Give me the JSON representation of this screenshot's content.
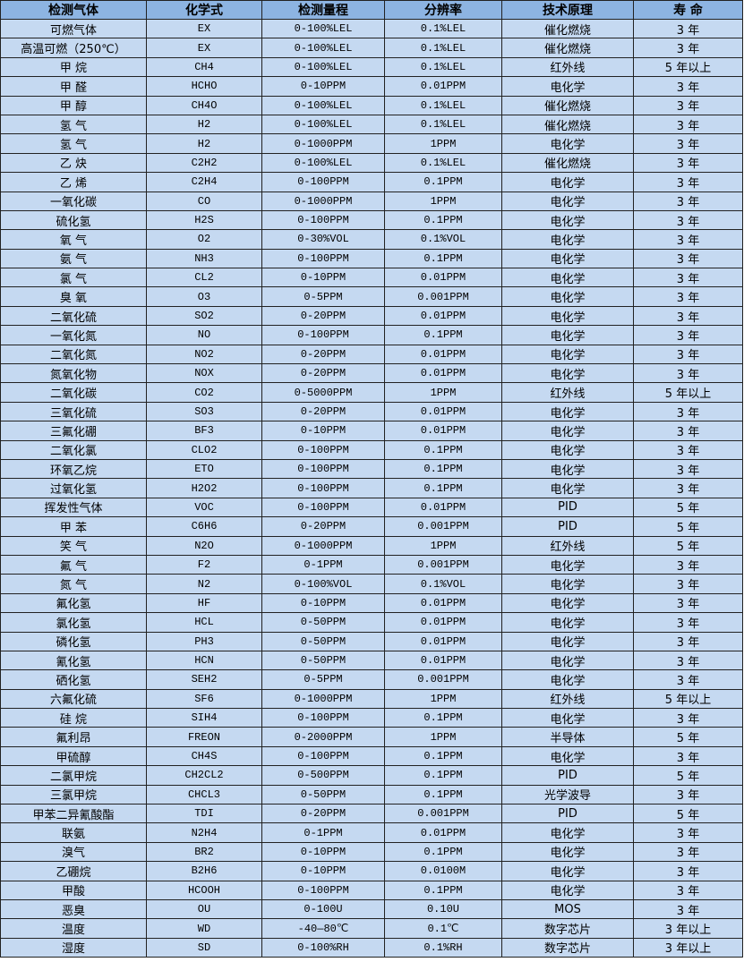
{
  "table": {
    "headers": [
      "检测气体",
      "化学式",
      "检测量程",
      "分辨率",
      "技术原理",
      "寿 命"
    ],
    "rows": [
      [
        "可燃气体",
        "EX",
        "0-100%LEL",
        "0.1%LEL",
        "催化燃烧",
        "3 年"
      ],
      [
        "高温可燃（250℃）",
        "EX",
        "0-100%LEL",
        "0.1%LEL",
        "催化燃烧",
        "3 年"
      ],
      [
        "甲 烷",
        "CH4",
        "0-100%LEL",
        "0.1%LEL",
        "红外线",
        "5 年以上"
      ],
      [
        "甲 醛",
        "HCHO",
        "0-10PPM",
        "0.01PPM",
        "电化学",
        "3 年"
      ],
      [
        "甲 醇",
        "CH4O",
        "0-100%LEL",
        "0.1%LEL",
        "催化燃烧",
        "3 年"
      ],
      [
        "氢 气",
        "H2",
        "0-100%LEL",
        "0.1%LEL",
        "催化燃烧",
        "3 年"
      ],
      [
        "氢 气",
        "H2",
        "0-1000PPM",
        "1PPM",
        "电化学",
        "3 年"
      ],
      [
        "乙 炔",
        "C2H2",
        "0-100%LEL",
        "0.1%LEL",
        "催化燃烧",
        "3 年"
      ],
      [
        "乙 烯",
        "C2H4",
        "0-100PPM",
        "0.1PPM",
        "电化学",
        "3 年"
      ],
      [
        "一氧化碳",
        "CO",
        "0-1000PPM",
        "1PPM",
        "电化学",
        "3 年"
      ],
      [
        "硫化氢",
        "H2S",
        "0-100PPM",
        "0.1PPM",
        "电化学",
        "3 年"
      ],
      [
        "氧 气",
        "O2",
        "0-30%VOL",
        "0.1%VOL",
        "电化学",
        "3 年"
      ],
      [
        "氨 气",
        "NH3",
        "0-100PPM",
        "0.1PPM",
        "电化学",
        "3 年"
      ],
      [
        "氯 气",
        "CL2",
        "0-10PPM",
        "0.01PPM",
        "电化学",
        "3 年"
      ],
      [
        "臭 氧",
        "O3",
        "0-5PPM",
        "0.001PPM",
        "电化学",
        "3 年"
      ],
      [
        "二氧化硫",
        "SO2",
        "0-20PPM",
        "0.01PPM",
        "电化学",
        "3 年"
      ],
      [
        "一氧化氮",
        "NO",
        "0-100PPM",
        "0.1PPM",
        "电化学",
        "3 年"
      ],
      [
        "二氧化氮",
        "NO2",
        "0-20PPM",
        "0.01PPM",
        "电化学",
        "3 年"
      ],
      [
        "氮氧化物",
        "NOX",
        "0-20PPM",
        "0.01PPM",
        "电化学",
        "3 年"
      ],
      [
        "二氧化碳",
        "CO2",
        "0-5000PPM",
        "1PPM",
        "红外线",
        "5 年以上"
      ],
      [
        "三氧化硫",
        "SO3",
        "0-20PPM",
        "0.01PPM",
        "电化学",
        "3 年"
      ],
      [
        "三氟化硼",
        "BF3",
        "0-10PPM",
        "0.01PPM",
        "电化学",
        "3 年"
      ],
      [
        "二氧化氯",
        "CLO2",
        "0-100PPM",
        "0.1PPM",
        "电化学",
        "3 年"
      ],
      [
        "环氧乙烷",
        "ETO",
        "0-100PPM",
        "0.1PPM",
        "电化学",
        "3 年"
      ],
      [
        "过氧化氢",
        "H2O2",
        "0-100PPM",
        "0.1PPM",
        "电化学",
        "3 年"
      ],
      [
        "挥发性气体",
        "VOC",
        "0-100PPM",
        "0.01PPM",
        "PID",
        "5 年"
      ],
      [
        "甲 苯",
        "C6H6",
        "0-20PPM",
        "0.001PPM",
        "PID",
        "5 年"
      ],
      [
        "笑 气",
        "N2O",
        "0-1000PPM",
        "1PPM",
        "红外线",
        "5 年"
      ],
      [
        "氟 气",
        "F2",
        "0-1PPM",
        "0.001PPM",
        "电化学",
        "3 年"
      ],
      [
        "氮 气",
        "N2",
        "0-100%VOL",
        "0.1%VOL",
        "电化学",
        "3 年"
      ],
      [
        "氟化氢",
        "HF",
        "0-10PPM",
        "0.01PPM",
        "电化学",
        "3 年"
      ],
      [
        "氯化氢",
        "HCL",
        "0-50PPM",
        "0.01PPM",
        "电化学",
        "3 年"
      ],
      [
        "磷化氢",
        "PH3",
        "0-50PPM",
        "0.01PPM",
        "电化学",
        "3 年"
      ],
      [
        "氰化氢",
        "HCN",
        "0-50PPM",
        "0.01PPM",
        "电化学",
        "3 年"
      ],
      [
        "硒化氢",
        "SEH2",
        "0-5PPM",
        "0.001PPM",
        "电化学",
        "3 年"
      ],
      [
        "六氟化硫",
        "SF6",
        "0-1000PPM",
        "1PPM",
        "红外线",
        "5 年以上"
      ],
      [
        "硅 烷",
        "SIH4",
        "0-100PPM",
        "0.1PPM",
        "电化学",
        "3 年"
      ],
      [
        "氟利昂",
        "FREON",
        "0-2000PPM",
        "1PPM",
        "半导体",
        "5 年"
      ],
      [
        "甲硫醇",
        "CH4S",
        "0-100PPM",
        "0.1PPM",
        "电化学",
        "3 年"
      ],
      [
        "二氯甲烷",
        "CH2CL2",
        "0-500PPM",
        "0.1PPM",
        "PID",
        "5 年"
      ],
      [
        "三氯甲烷",
        "CHCL3",
        "0-50PPM",
        "0.1PPM",
        "光学波导",
        "3 年"
      ],
      [
        "甲苯二异氰酸酯",
        "TDI",
        "0-20PPM",
        "0.001PPM",
        "PID",
        "5 年"
      ],
      [
        "联氨",
        "N2H4",
        "0-1PPM",
        "0.01PPM",
        "电化学",
        "3 年"
      ],
      [
        "溴气",
        "BR2",
        "0-10PPM",
        "0.1PPM",
        "电化学",
        "3 年"
      ],
      [
        "乙硼烷",
        "B2H6",
        "0-10PPM",
        "0.0100M",
        "电化学",
        "3 年"
      ],
      [
        "甲酸",
        "HCOOH",
        "0-100PPM",
        "0.1PPM",
        "电化学",
        "3 年"
      ],
      [
        "恶臭",
        "OU",
        "0-100U",
        "0.10U",
        "MOS",
        "3 年"
      ],
      [
        "温度",
        "WD",
        "-40—80℃",
        "0.1℃",
        "数字芯片",
        "3 年以上"
      ],
      [
        "湿度",
        "SD",
        "0-100%RH",
        "0.1%RH",
        "数字芯片",
        "3 年以上"
      ]
    ]
  },
  "colors": {
    "header_bg": "#8db4e2",
    "row_bg": "#c5d9f1",
    "border": "#222222"
  }
}
